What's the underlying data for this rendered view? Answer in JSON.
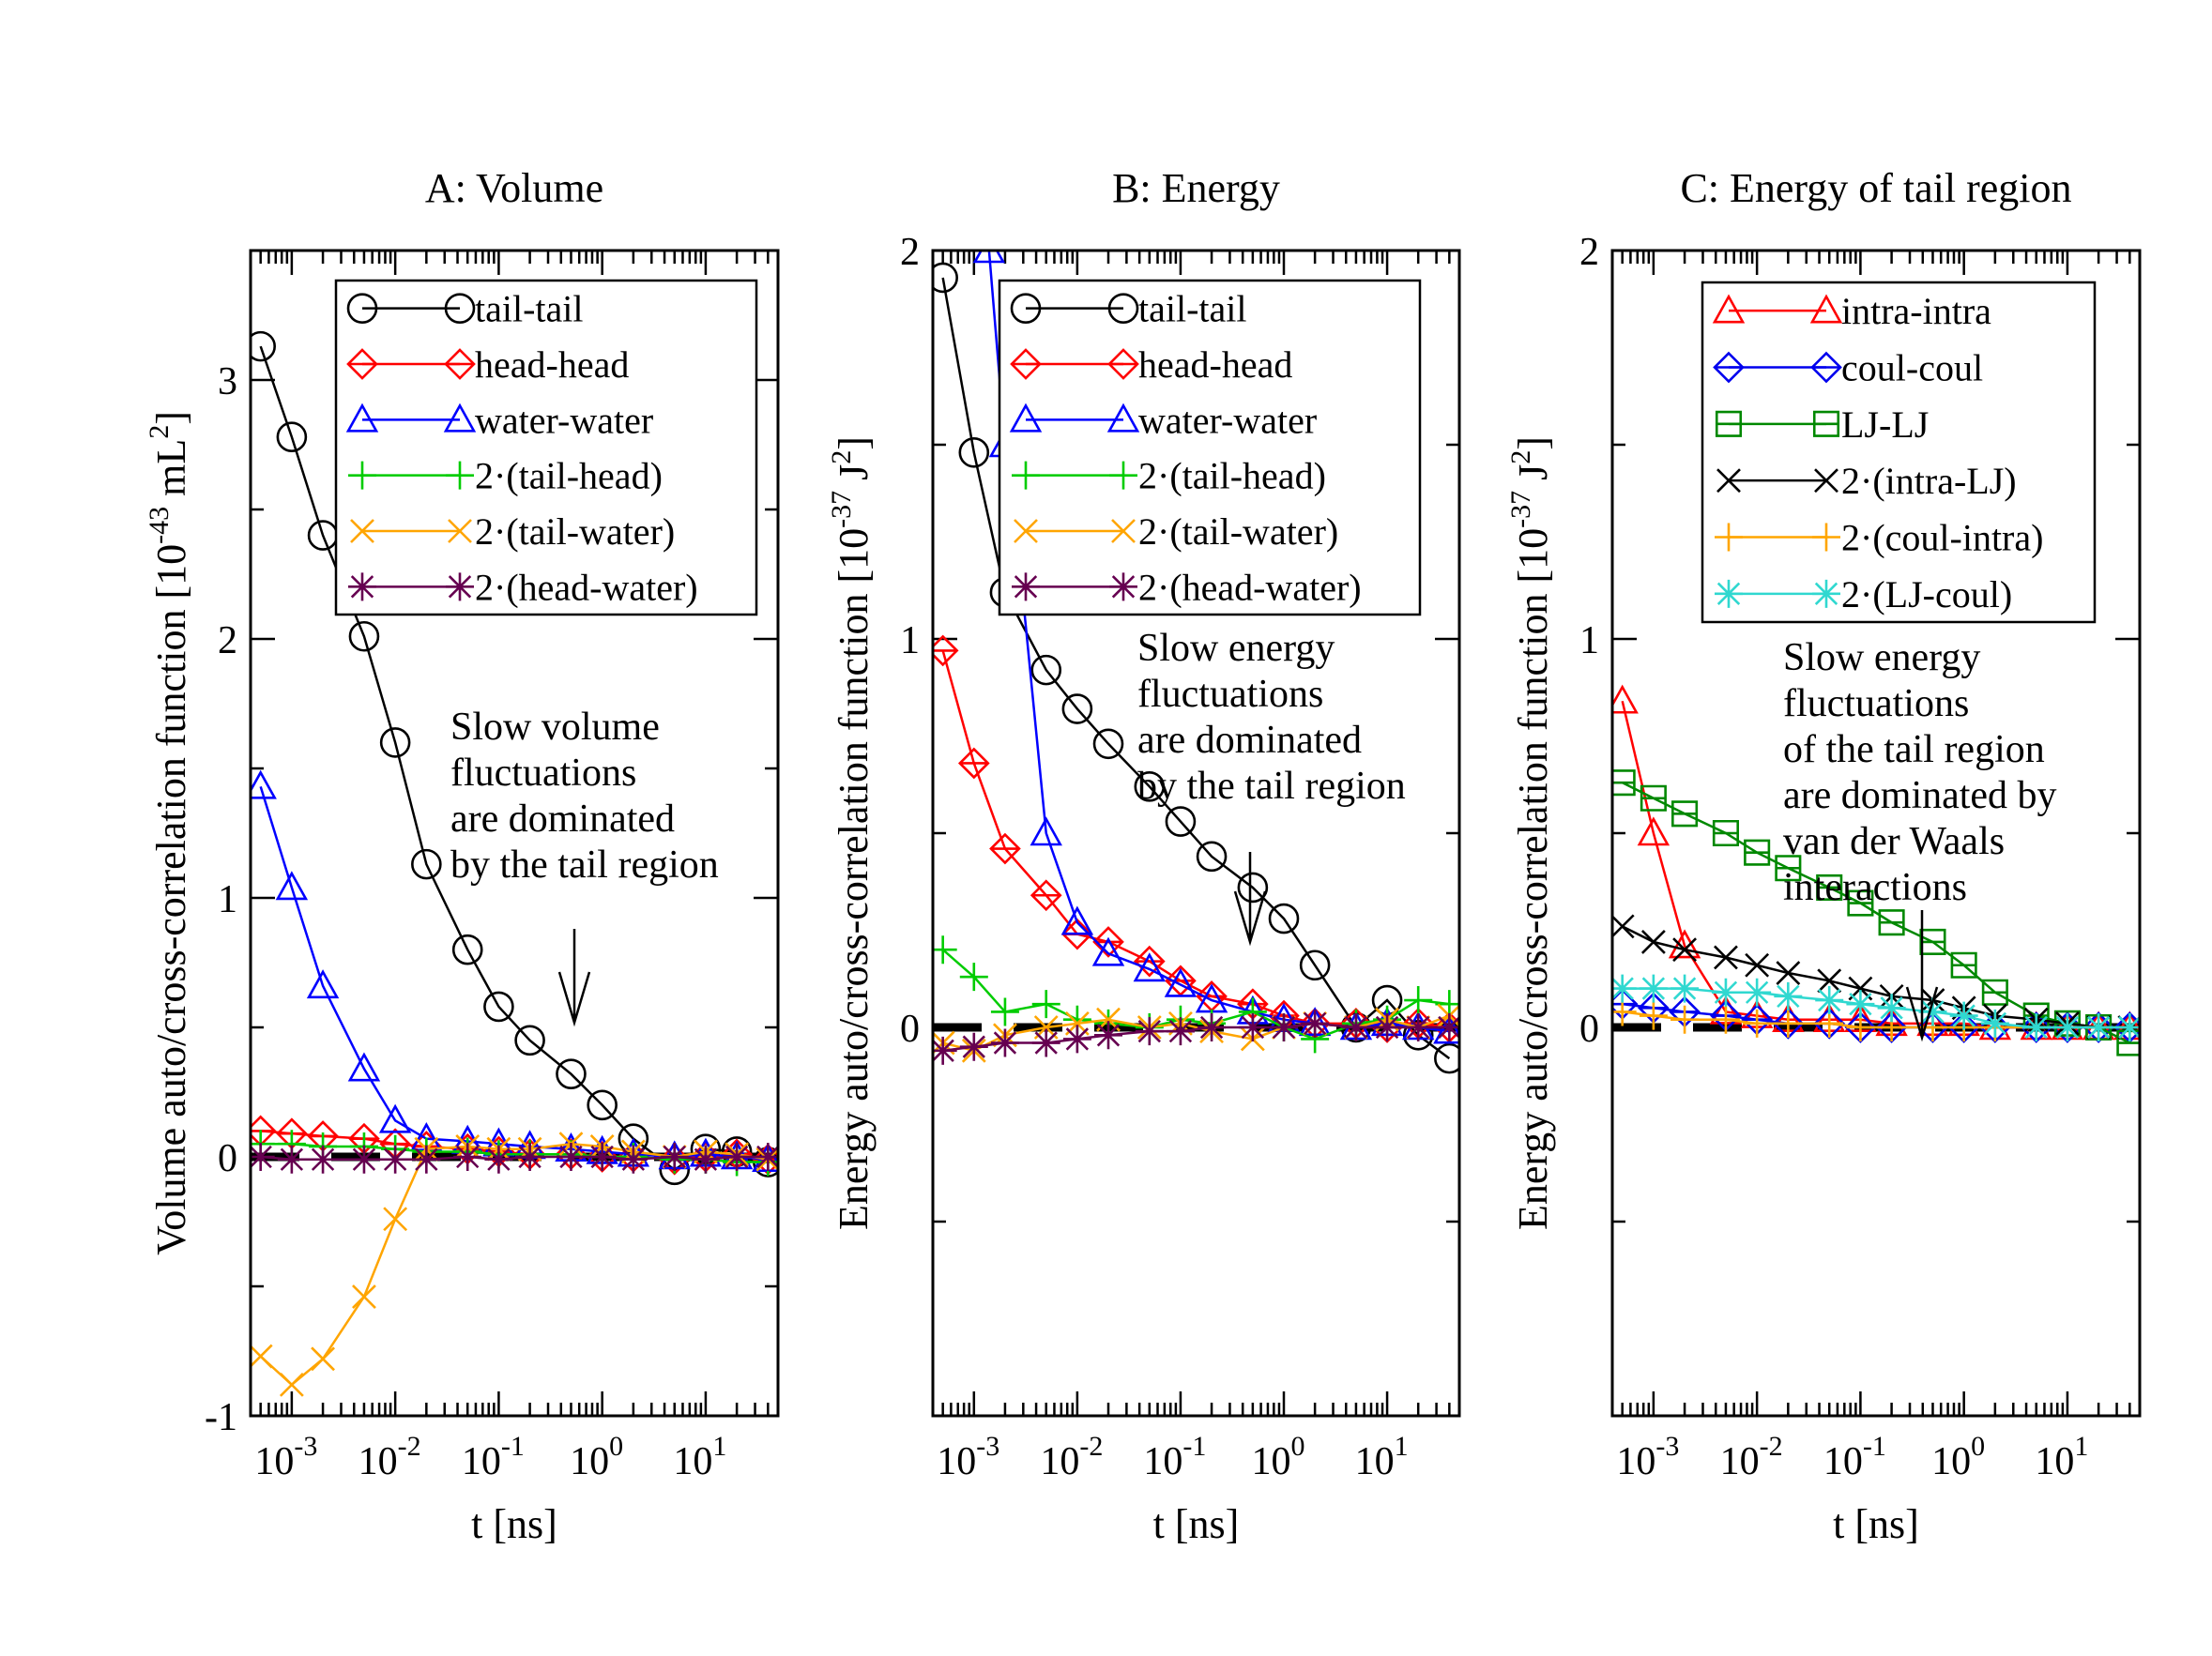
{
  "colors": {
    "black": "#000000",
    "red": "#ff0000",
    "blue": "#0000ff",
    "green": "#00cc00",
    "orange": "#ffa500",
    "maroon": "#660050",
    "darkgreen": "#008800",
    "cyan": "#30d8d0",
    "blue2": "#0000ee"
  },
  "chart_data": [
    {
      "type": "line",
      "title": "A: Volume",
      "xlabel": "t [ns]",
      "ylabel_parts": [
        "Volume auto/cross-correlation function [10",
        "-43",
        " mL",
        "2",
        "]"
      ],
      "xscale": "log",
      "xlim": [
        0.0004,
        50
      ],
      "ylim": [
        -1,
        3.5
      ],
      "ytick_labels": [
        "-1",
        "0",
        "1",
        "2",
        "3"
      ],
      "ytick_values": [
        -1,
        0,
        1,
        2,
        3
      ],
      "xtick_exponents": [
        "-3",
        "-2",
        "-1",
        "0",
        "1"
      ],
      "legend_location": "top-right",
      "annotation": {
        "lines": [
          "Slow volume",
          "fluctuations",
          "are dominated",
          "by the tail region"
        ],
        "arrow_to": [
          0.6,
          0.5
        ]
      },
      "series": [
        {
          "name": "tail-tail",
          "color": "black",
          "marker": "circle",
          "x": [
            0.0005,
            0.001,
            0.002,
            0.005,
            0.01,
            0.02,
            0.05,
            0.1,
            0.2,
            0.5,
            1,
            2,
            5,
            10,
            20,
            40
          ],
          "y": [
            3.13,
            2.78,
            2.4,
            2.01,
            1.6,
            1.13,
            0.8,
            0.58,
            0.45,
            0.32,
            0.2,
            0.07,
            -0.05,
            0.03,
            0.02,
            -0.02
          ]
        },
        {
          "name": "head-head",
          "color": "red",
          "marker": "diamond",
          "x": [
            0.0005,
            0.001,
            0.002,
            0.005,
            0.01,
            0.02,
            0.05,
            0.1,
            0.2,
            0.5,
            1,
            2,
            5,
            10,
            20,
            40
          ],
          "y": [
            0.1,
            0.09,
            0.08,
            0.07,
            0.05,
            0.04,
            0.03,
            0.02,
            0.01,
            0.01,
            0.0,
            0.0,
            -0.01,
            0.0,
            0.01,
            -0.01
          ]
        },
        {
          "name": "water-water",
          "color": "blue",
          "marker": "triangle",
          "x": [
            0.0005,
            0.001,
            0.002,
            0.005,
            0.01,
            0.02,
            0.05,
            0.1,
            0.2,
            0.5,
            1,
            2,
            5,
            10,
            20,
            40
          ],
          "y": [
            1.43,
            1.04,
            0.66,
            0.34,
            0.14,
            0.07,
            0.06,
            0.05,
            0.04,
            0.03,
            0.02,
            0.01,
            0.0,
            0.01,
            0.0,
            -0.01
          ]
        },
        {
          "name": "2·(tail-head)",
          "color": "green",
          "marker": "plus",
          "x": [
            0.0005,
            0.001,
            0.002,
            0.005,
            0.01,
            0.02,
            0.05,
            0.1,
            0.2,
            0.5,
            1,
            2,
            5,
            10,
            20,
            40
          ],
          "y": [
            0.05,
            0.05,
            0.04,
            0.04,
            0.03,
            0.02,
            0.02,
            0.01,
            0.01,
            0.01,
            0.0,
            0.0,
            -0.01,
            -0.01,
            -0.02,
            -0.02
          ]
        },
        {
          "name": "2·(tail-water)",
          "color": "orange",
          "marker": "x",
          "x": [
            0.0005,
            0.001,
            0.002,
            0.005,
            0.01,
            0.02,
            0.05,
            0.1,
            0.2,
            0.5,
            1,
            2,
            5,
            10,
            20,
            40
          ],
          "y": [
            -0.77,
            -0.88,
            -0.78,
            -0.54,
            -0.24,
            0.03,
            0.04,
            0.03,
            0.03,
            0.05,
            0.04,
            0.02,
            0.0,
            0.02,
            0.01,
            -0.01
          ]
        },
        {
          "name": "2·(head-water)",
          "color": "maroon",
          "marker": "star",
          "x": [
            0.0005,
            0.001,
            0.002,
            0.005,
            0.01,
            0.02,
            0.05,
            0.1,
            0.2,
            0.5,
            1,
            2,
            5,
            10,
            20,
            40
          ],
          "y": [
            0.0,
            -0.01,
            -0.01,
            -0.01,
            -0.01,
            -0.01,
            0.0,
            -0.01,
            0.0,
            0.0,
            0.0,
            -0.01,
            0.0,
            -0.01,
            0.0,
            0.0
          ]
        }
      ]
    },
    {
      "type": "line",
      "title": "B: Energy",
      "xlabel": "t [ns]",
      "ylabel_parts": [
        "Energy auto/cross-correlation function [10",
        "-37",
        " J",
        "2",
        "]"
      ],
      "xscale": "log",
      "xlim": [
        0.0004,
        50
      ],
      "ylim": [
        -1,
        2
      ],
      "ytick_labels": [
        "0",
        "1",
        "2"
      ],
      "ytick_values": [
        0,
        1,
        2
      ],
      "xtick_exponents": [
        "-3",
        "-2",
        "-1",
        "0",
        "1"
      ],
      "legend_location": "top-right",
      "annotation": {
        "lines": [
          "Slow energy",
          "fluctuations",
          "are dominated",
          "by the tail region"
        ],
        "arrow_to": [
          0.5,
          0.45
        ]
      },
      "series": [
        {
          "name": "tail-tail",
          "color": "black",
          "marker": "circle",
          "x": [
            0.0005,
            0.001,
            0.002,
            0.005,
            0.01,
            0.02,
            0.05,
            0.1,
            0.2,
            0.5,
            1,
            2,
            5,
            10,
            20,
            40
          ],
          "y": [
            1.93,
            1.48,
            1.12,
            0.92,
            0.82,
            0.73,
            0.62,
            0.53,
            0.44,
            0.36,
            0.28,
            0.16,
            0.0,
            0.07,
            -0.02,
            -0.08
          ]
        },
        {
          "name": "head-head",
          "color": "red",
          "marker": "diamond",
          "x": [
            0.0005,
            0.001,
            0.002,
            0.005,
            0.01,
            0.02,
            0.05,
            0.1,
            0.2,
            0.5,
            1,
            2,
            5,
            10,
            20,
            40
          ],
          "y": [
            0.97,
            0.68,
            0.46,
            0.34,
            0.24,
            0.22,
            0.17,
            0.12,
            0.08,
            0.06,
            0.03,
            0.01,
            0.01,
            0.0,
            0.01,
            0.0
          ]
        },
        {
          "name": "water-water",
          "color": "blue",
          "marker": "triangle",
          "x": [
            0.0014,
            0.002,
            0.003,
            0.005,
            0.01,
            0.02,
            0.05,
            0.1,
            0.2,
            0.5,
            1,
            2,
            5,
            10,
            20,
            40
          ],
          "y": [
            2.0,
            1.5,
            1.1,
            0.5,
            0.27,
            0.19,
            0.15,
            0.11,
            0.07,
            0.04,
            0.02,
            0.01,
            0.0,
            0.01,
            0.0,
            -0.01
          ]
        },
        {
          "name": "2·(tail-head)",
          "color": "green",
          "marker": "plus",
          "x": [
            0.0005,
            0.001,
            0.002,
            0.005,
            0.01,
            0.02,
            0.05,
            0.1,
            0.2,
            0.5,
            1,
            2,
            5,
            10,
            20,
            40
          ],
          "y": [
            0.2,
            0.13,
            0.04,
            0.06,
            0.02,
            0.01,
            0.0,
            0.02,
            0.01,
            0.04,
            0.0,
            -0.03,
            0.01,
            0.02,
            0.07,
            0.06
          ]
        },
        {
          "name": "2·(tail-water)",
          "color": "orange",
          "marker": "x",
          "x": [
            0.0005,
            0.001,
            0.002,
            0.005,
            0.01,
            0.02,
            0.05,
            0.1,
            0.2,
            0.5,
            1,
            2,
            5,
            10,
            20,
            40
          ],
          "y": [
            -0.04,
            -0.06,
            -0.02,
            0.0,
            0.01,
            0.02,
            0.0,
            0.01,
            -0.01,
            -0.03,
            0.0,
            0.01,
            0.0,
            0.02,
            0.0,
            0.03
          ]
        },
        {
          "name": "2·(head-water)",
          "color": "maroon",
          "marker": "star",
          "x": [
            0.0005,
            0.001,
            0.002,
            0.005,
            0.01,
            0.02,
            0.05,
            0.1,
            0.2,
            0.5,
            1,
            2,
            5,
            10,
            20,
            40
          ],
          "y": [
            -0.06,
            -0.05,
            -0.04,
            -0.04,
            -0.03,
            -0.02,
            -0.01,
            -0.01,
            0.0,
            0.0,
            0.0,
            0.01,
            0.0,
            0.0,
            0.0,
            0.0
          ]
        }
      ]
    },
    {
      "type": "line",
      "title": "C: Energy of tail region",
      "xlabel": "t [ns]",
      "ylabel_parts": [
        "Energy auto/cross-correlation function [10",
        "-37",
        " J",
        "2",
        "]"
      ],
      "xscale": "log",
      "xlim": [
        0.0004,
        50
      ],
      "ylim": [
        -1,
        2
      ],
      "ytick_labels": [
        "0",
        "1",
        "2"
      ],
      "ytick_values": [
        0,
        1,
        2
      ],
      "xtick_exponents": [
        "-3",
        "-2",
        "-1",
        "0",
        "1"
      ],
      "legend_location": "top-right",
      "annotation": {
        "lines": [
          "Slow energy",
          "fluctuations",
          "of the tail region",
          "are dominated by",
          "van der Waals",
          "interactions"
        ],
        "arrow_to": [
          0.5,
          0.24
        ]
      },
      "series": [
        {
          "name": "intra-intra",
          "color": "red",
          "marker": "triangle",
          "x": [
            0.0005,
            0.001,
            0.002,
            0.005,
            0.01,
            0.02,
            0.05,
            0.1,
            0.2,
            0.5,
            1,
            2,
            5,
            10,
            20,
            40
          ],
          "y": [
            0.84,
            0.5,
            0.21,
            0.04,
            0.03,
            0.02,
            0.02,
            0.02,
            0.01,
            0.01,
            0.01,
            0.0,
            0.0,
            0.0,
            0.0,
            0.0
          ]
        },
        {
          "name": "coul-coul",
          "color": "blue2",
          "marker": "diamond",
          "x": [
            0.0005,
            0.001,
            0.002,
            0.005,
            0.01,
            0.02,
            0.05,
            0.1,
            0.2,
            0.5,
            1,
            2,
            5,
            10,
            20,
            40
          ],
          "y": [
            0.06,
            0.05,
            0.04,
            0.03,
            0.02,
            0.01,
            0.01,
            0.0,
            0.0,
            0.0,
            0.0,
            0.0,
            0.0,
            0.0,
            0.0,
            0.0
          ]
        },
        {
          "name": "LJ-LJ",
          "color": "darkgreen",
          "marker": "square",
          "x": [
            0.0005,
            0.001,
            0.002,
            0.005,
            0.01,
            0.02,
            0.05,
            0.1,
            0.2,
            0.5,
            1,
            2,
            5,
            10,
            20,
            40
          ],
          "y": [
            0.63,
            0.59,
            0.55,
            0.5,
            0.45,
            0.41,
            0.36,
            0.32,
            0.27,
            0.22,
            0.16,
            0.09,
            0.03,
            0.01,
            0.0,
            -0.04
          ]
        },
        {
          "name": "2·(intra-LJ)",
          "color": "black",
          "marker": "x",
          "x": [
            0.0005,
            0.001,
            0.002,
            0.005,
            0.01,
            0.02,
            0.05,
            0.1,
            0.2,
            0.5,
            1,
            2,
            5,
            10,
            20,
            40
          ],
          "y": [
            0.26,
            0.22,
            0.2,
            0.18,
            0.16,
            0.14,
            0.12,
            0.1,
            0.08,
            0.07,
            0.05,
            0.03,
            0.02,
            0.01,
            0.0,
            0.0
          ]
        },
        {
          "name": "2·(coul-intra)",
          "color": "orange",
          "marker": "plus",
          "x": [
            0.0005,
            0.001,
            0.002,
            0.005,
            0.01,
            0.02,
            0.05,
            0.1,
            0.2,
            0.5,
            1,
            2,
            5,
            10,
            20,
            40
          ],
          "y": [
            0.04,
            0.03,
            0.02,
            0.02,
            0.01,
            0.01,
            0.01,
            0.0,
            0.0,
            0.0,
            0.0,
            0.0,
            0.0,
            0.0,
            0.0,
            0.0
          ]
        },
        {
          "name": "2·(LJ-coul)",
          "color": "cyan",
          "marker": "star",
          "x": [
            0.0005,
            0.001,
            0.002,
            0.005,
            0.01,
            0.02,
            0.05,
            0.1,
            0.2,
            0.5,
            1,
            2,
            5,
            10,
            20,
            40
          ],
          "y": [
            0.1,
            0.1,
            0.1,
            0.09,
            0.09,
            0.08,
            0.07,
            0.06,
            0.05,
            0.04,
            0.03,
            0.01,
            0.0,
            0.0,
            0.0,
            0.0
          ]
        }
      ]
    }
  ]
}
